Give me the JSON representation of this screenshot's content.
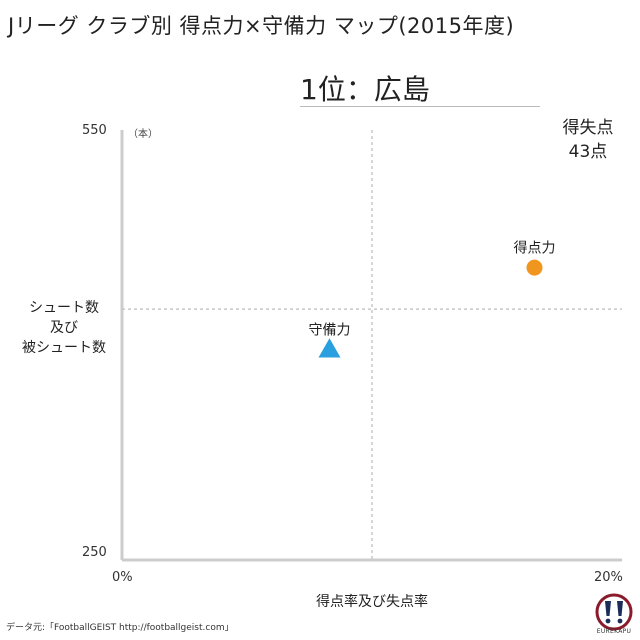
{
  "title": "Jリーグ クラブ別 得点力×守備力 マップ(2015年度)",
  "rank_title": "1位：広島",
  "goals_conceded": {
    "label": "得失点",
    "value": "43点"
  },
  "source": "データ元:「FootballGEIST http://footballgeist.com」",
  "logo_text": "EUREKAPU",
  "colors": {
    "attack": "#f0961e",
    "defense": "#2a9fe0",
    "axis": "#cccccc",
    "grid": "#c8c8c8"
  },
  "chart_data": {
    "type": "scatter",
    "xlabel": "得点率及び失点率",
    "ylabel_lines": [
      "シュート数",
      "及び",
      "被シュート数"
    ],
    "y_unit": "（本）",
    "xlim": [
      0,
      20
    ],
    "ylim": [
      250,
      550
    ],
    "x_tick_labels": [
      "0%",
      "20%"
    ],
    "y_tick_labels": [
      "550",
      "250"
    ],
    "reference_lines": {
      "x": 10,
      "y": 425
    },
    "points": [
      {
        "label": "得点力",
        "x": 16.5,
        "y": 454,
        "marker": "circle",
        "color": "#f0961e"
      },
      {
        "label": "守備力",
        "x": 8.3,
        "y": 397,
        "marker": "triangle",
        "color": "#2a9fe0"
      }
    ]
  }
}
